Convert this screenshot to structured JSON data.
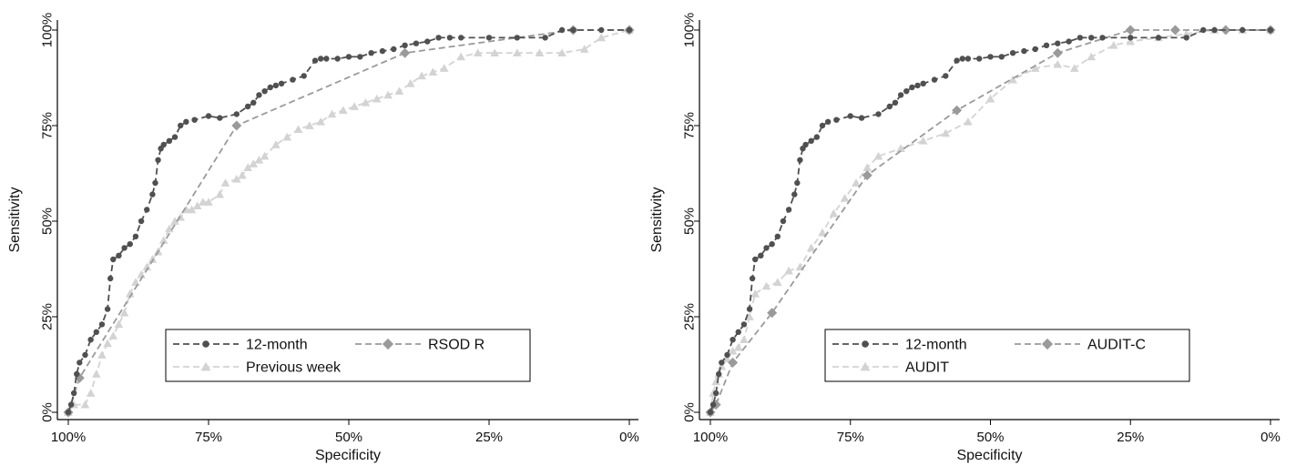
{
  "colors": {
    "series_12month": "#505050",
    "series_second": "#9a9a9a",
    "series_third": "#d3d3d3",
    "axis": "#000000"
  },
  "chart_data": [
    {
      "type": "line",
      "title": "",
      "xlabel": "Specificity",
      "ylabel": "Sensitivity",
      "x_axis_reversed": true,
      "xlim": [
        100,
        0
      ],
      "ylim": [
        0,
        100
      ],
      "x_ticks": [
        {
          "value": 100,
          "label": "100%"
        },
        {
          "value": 75,
          "label": "75%"
        },
        {
          "value": 50,
          "label": "50%"
        },
        {
          "value": 25,
          "label": "25%"
        },
        {
          "value": 0,
          "label": "0%"
        }
      ],
      "y_ticks": [
        {
          "value": 0,
          "label": "0%"
        },
        {
          "value": 25,
          "label": "25%"
        },
        {
          "value": 50,
          "label": "50%"
        },
        {
          "value": 75,
          "label": "75%"
        },
        {
          "value": 100,
          "label": "100%"
        }
      ],
      "grid": false,
      "legend": {
        "position": "bottom-right",
        "columns": 2
      },
      "series": [
        {
          "name": "12-month",
          "marker": "circle",
          "color_key": "series_12month",
          "x": [
            100,
            99.5,
            99,
            98.5,
            98,
            97,
            96,
            95,
            94,
            93,
            92.5,
            92,
            91,
            90,
            89,
            88,
            87,
            86,
            85,
            84.5,
            84,
            83.5,
            83,
            82,
            81,
            80,
            79,
            77.5,
            75,
            73,
            70,
            68,
            67,
            66,
            65,
            64,
            63,
            62,
            60,
            58,
            56,
            55,
            54,
            52,
            50,
            48,
            46,
            44,
            42,
            40,
            38,
            36,
            34,
            32,
            30,
            25,
            20,
            15,
            12,
            10,
            5,
            0
          ],
          "y": [
            0,
            2,
            5,
            10,
            13,
            15,
            19,
            21,
            23,
            27,
            35,
            40,
            41,
            43,
            44,
            46,
            50,
            53,
            57,
            60,
            66,
            69,
            70,
            71,
            72,
            75,
            76,
            76.5,
            77.5,
            77,
            78,
            80,
            81,
            83,
            84,
            85,
            85.5,
            86,
            87,
            88,
            92,
            92.5,
            92.5,
            92.5,
            93,
            93,
            94,
            94.5,
            95,
            96,
            96.5,
            97,
            98,
            98,
            98,
            98,
            98,
            98,
            100,
            100,
            100,
            100
          ]
        },
        {
          "name": "RSOD R",
          "marker": "diamond",
          "color_key": "series_second",
          "x": [
            100,
            98,
            70,
            40,
            10,
            0
          ],
          "y": [
            0,
            9,
            75,
            94,
            100,
            100
          ]
        },
        {
          "name": "Previous week",
          "marker": "triangle",
          "color_key": "series_third",
          "x": [
            100,
            99,
            97,
            96,
            95,
            94,
            93,
            92,
            91,
            90,
            89,
            88,
            87,
            86,
            85,
            84,
            83,
            82,
            81,
            80,
            79,
            78,
            77,
            76,
            75,
            73,
            72,
            70,
            69,
            68,
            67,
            66,
            65,
            63,
            61,
            59,
            57,
            55,
            53,
            51,
            49,
            47,
            45,
            43,
            41,
            39,
            37,
            35,
            33,
            30,
            27,
            24,
            20,
            16,
            12,
            8,
            5,
            0
          ],
          "y": [
            0,
            2,
            2,
            5,
            10,
            15,
            18,
            20,
            23,
            26,
            31,
            34,
            36,
            38,
            40,
            42,
            45,
            48,
            50,
            51,
            53,
            53,
            54,
            55,
            55,
            57,
            60,
            61,
            62,
            64,
            65,
            66,
            67,
            70,
            72,
            74,
            75,
            76,
            78,
            79,
            80,
            81,
            82,
            83,
            84,
            86,
            88,
            89,
            90,
            93,
            94,
            94,
            94,
            94,
            94,
            95,
            98,
            100
          ]
        }
      ]
    },
    {
      "type": "line",
      "title": "",
      "xlabel": "Specificity",
      "ylabel": "Sensitivity",
      "x_axis_reversed": true,
      "xlim": [
        100,
        0
      ],
      "ylim": [
        0,
        100
      ],
      "x_ticks": [
        {
          "value": 100,
          "label": "100%"
        },
        {
          "value": 75,
          "label": "75%"
        },
        {
          "value": 50,
          "label": "50%"
        },
        {
          "value": 25,
          "label": "25%"
        },
        {
          "value": 0,
          "label": "0%"
        }
      ],
      "y_ticks": [
        {
          "value": 0,
          "label": "0%"
        },
        {
          "value": 25,
          "label": "25%"
        },
        {
          "value": 50,
          "label": "50%"
        },
        {
          "value": 75,
          "label": "75%"
        },
        {
          "value": 100,
          "label": "100%"
        }
      ],
      "grid": false,
      "legend": {
        "position": "bottom-right",
        "columns": 2
      },
      "series": [
        {
          "name": "12-month",
          "marker": "circle",
          "color_key": "series_12month",
          "x": [
            100,
            99.5,
            99,
            98.5,
            98,
            97,
            96,
            95,
            94,
            93,
            92.5,
            92,
            91,
            90,
            89,
            88,
            87,
            86,
            85,
            84.5,
            84,
            83.5,
            83,
            82,
            81,
            80,
            79,
            77.5,
            75,
            73,
            70,
            68,
            67,
            66,
            65,
            64,
            63,
            62,
            60,
            58,
            56,
            55,
            54,
            52,
            50,
            48,
            46,
            44,
            42,
            40,
            38,
            36,
            34,
            32,
            30,
            25,
            20,
            15,
            12,
            10,
            5,
            0
          ],
          "y": [
            0,
            2,
            5,
            10,
            13,
            15,
            19,
            21,
            23,
            27,
            35,
            40,
            41,
            43,
            44,
            46,
            50,
            53,
            57,
            60,
            66,
            69,
            70,
            71,
            72,
            75,
            76,
            76.5,
            77.5,
            77,
            78,
            80,
            81,
            83,
            84,
            85,
            85.5,
            86,
            87,
            88,
            92,
            92.5,
            92.5,
            92.5,
            93,
            93,
            94,
            94.5,
            95,
            96,
            96.5,
            97,
            98,
            98,
            98,
            98,
            98,
            98,
            100,
            100,
            100,
            100
          ]
        },
        {
          "name": "AUDIT-C",
          "marker": "diamond",
          "color_key": "series_second",
          "x": [
            100,
            99,
            96,
            89,
            72,
            56,
            38,
            25,
            17,
            8,
            0
          ],
          "y": [
            0,
            2,
            13,
            26,
            62,
            79,
            94,
            100,
            100,
            100,
            100
          ]
        },
        {
          "name": "AUDIT",
          "marker": "triangle",
          "color_key": "series_third",
          "x": [
            100,
            99.5,
            99,
            98.5,
            98,
            97,
            96,
            95,
            94,
            93,
            92,
            90,
            88,
            86,
            84,
            82,
            80,
            78,
            76,
            74,
            72,
            70,
            66,
            62,
            58,
            54,
            50,
            46,
            42,
            38,
            35,
            32,
            28,
            25,
            20,
            15,
            10,
            5,
            0
          ],
          "y": [
            0,
            5,
            8,
            10,
            12,
            14,
            16,
            17,
            19,
            25,
            31,
            33,
            34,
            37,
            38,
            43,
            47,
            52,
            56,
            60,
            64,
            67,
            69,
            71,
            73,
            76,
            82,
            87,
            90,
            91,
            90,
            93,
            96,
            97,
            98,
            99,
            100,
            100,
            100
          ]
        }
      ]
    }
  ]
}
